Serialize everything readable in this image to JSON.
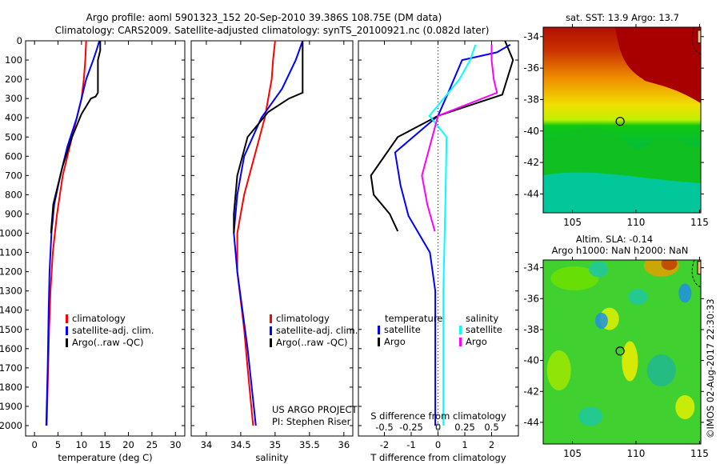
{
  "title_line1": "Argo profile: aoml 5901323_152 20-Sep-2010 39.386S 108.75E (DM data)",
  "title_line2": "Climatology: CARS2009. Satellite-adjusted climatology: synTS_20100921.nc (0.082d later)",
  "credit": "©IMOS 02-Aug-2017 22:30:33",
  "project_line1": "US ARGO PROJECT",
  "project_line2": "PI: Stephen Riser",
  "colors": {
    "climatology": "#ff0000",
    "satellite": "#0000ff",
    "argo": "#000000",
    "sal_satellite": "#00ffff",
    "sal_argo": "#ff00ff"
  },
  "chart_data": [
    {
      "type": "line",
      "name": "temperature-profile",
      "xlabel": "temperature (deg C)",
      "ylabel": "",
      "xlim": [
        -1.9,
        32
      ],
      "ylim": [
        2054,
        0
      ],
      "xticks": [
        "0",
        "5",
        "10",
        "15",
        "20",
        "25",
        "30"
      ],
      "xtick_values": [
        0,
        5,
        10,
        15,
        20,
        25,
        30
      ],
      "yticks": [
        "0",
        "100",
        "200",
        "300",
        "400",
        "500",
        "600",
        "700",
        "800",
        "900",
        "1000",
        "1100",
        "1200",
        "1300",
        "1400",
        "1500",
        "1600",
        "1700",
        "1800",
        "1900",
        "2000"
      ],
      "legend": [
        "climatology",
        "satellite-adj. clim.",
        "Argo(..raw -QC)"
      ],
      "series": [
        {
          "name": "climatology",
          "color": "#ff0000",
          "x": [
            11,
            10.8,
            10.5,
            10,
            9.5,
            8,
            6,
            4.8,
            3.9,
            3.4,
            3.1,
            2.9,
            2.6
          ],
          "y": [
            0,
            100,
            200,
            300,
            350,
            500,
            700,
            900,
            1100,
            1300,
            1500,
            1700,
            2000
          ]
        },
        {
          "name": "satellite-adj. clim.",
          "color": "#0000ff",
          "x": [
            13.8,
            13.2,
            12.5,
            11,
            10,
            9,
            7,
            5.5,
            4.2,
            3.6,
            3.2,
            3,
            2.8,
            2.5
          ],
          "y": [
            0,
            50,
            100,
            200,
            300,
            400,
            550,
            700,
            850,
            1000,
            1200,
            1400,
            1700,
            2000
          ]
        },
        {
          "name": "Argo(..raw -QC)",
          "color": "#000000",
          "x": [
            14,
            14,
            13.5,
            13.5,
            13,
            12,
            10,
            8,
            6,
            4,
            3.5
          ],
          "y": [
            0,
            50,
            100,
            270,
            290,
            300,
            380,
            500,
            650,
            850,
            1000
          ]
        }
      ]
    },
    {
      "type": "line",
      "name": "salinity-profile",
      "xlabel": "salinity",
      "xlim": [
        33.78,
        36.13
      ],
      "ylim": [
        2054,
        0
      ],
      "xticks": [
        "34",
        "34.5",
        "35",
        "35.5",
        "36"
      ],
      "xtick_values": [
        34,
        34.5,
        35,
        35.5,
        36
      ],
      "legend": [
        "climatology",
        "satellite-adj. clim.",
        "Argo(..raw -QC)"
      ],
      "series": [
        {
          "name": "climatology",
          "color": "#ff0000",
          "x": [
            35,
            34.97,
            34.95,
            34.85,
            34.7,
            34.55,
            34.45,
            34.45,
            34.55,
            34.6,
            34.68
          ],
          "y": [
            0,
            100,
            200,
            400,
            600,
            800,
            1000,
            1200,
            1500,
            1700,
            2000
          ]
        },
        {
          "name": "satellite-adj. clim.",
          "color": "#0000ff",
          "x": [
            35.4,
            35.3,
            35.1,
            34.8,
            34.55,
            34.45,
            34.4,
            34.45,
            34.6,
            34.72
          ],
          "y": [
            0,
            100,
            250,
            400,
            600,
            800,
            1000,
            1200,
            1600,
            2000
          ]
        },
        {
          "name": "Argo(..raw -QC)",
          "color": "#000000",
          "x": [
            35.4,
            35.4,
            35.4,
            35.2,
            34.9,
            34.6,
            34.45,
            34.4,
            34.4
          ],
          "y": [
            0,
            50,
            270,
            300,
            370,
            500,
            700,
            900,
            1000
          ]
        }
      ]
    },
    {
      "type": "line",
      "name": "difference-profile",
      "xlabel": "T difference from climatology",
      "x2label": "S difference from climatology",
      "xlim": [
        -2.97,
        3.0
      ],
      "ylim": [
        2054,
        0
      ],
      "xticks": [
        "-2",
        "-1",
        "0",
        "1",
        "2"
      ],
      "xtick_values": [
        -2,
        -1,
        0,
        1,
        2
      ],
      "x2ticks": [
        "-0.5",
        "-0.25",
        "0",
        "0.25",
        "0.5"
      ],
      "x2tick_values": [
        -0.5,
        -0.25,
        0,
        0.25,
        0.5
      ],
      "legend_temperature": {
        "title": "temperature",
        "items": [
          "satellite",
          "Argo"
        ]
      },
      "legend_salinity": {
        "title": "salinity",
        "items": [
          "satellite",
          "Argo"
        ]
      },
      "series": [
        {
          "name": "T satellite",
          "color": "#0000ff",
          "units": "T",
          "x": [
            2.7,
            2.2,
            0.9,
            0.35,
            0,
            -1.6,
            -1.4,
            -1.1,
            -0.3,
            -0.1,
            -0.1
          ],
          "y": [
            20,
            60,
            100,
            280,
            390,
            580,
            750,
            910,
            1100,
            1300,
            2000
          ]
        },
        {
          "name": "T Argo",
          "color": "#000000",
          "units": "T",
          "x": [
            2.5,
            2.8,
            2.4,
            0,
            -1.5,
            -2.5,
            -2.4,
            -1.8,
            -1.5
          ],
          "y": [
            0,
            100,
            280,
            390,
            500,
            700,
            800,
            900,
            990
          ]
        },
        {
          "name": "S satellite",
          "color": "#00ffff",
          "units": "S",
          "x": [
            0.35,
            0.3,
            0.2,
            -0.08,
            0.08,
            0.07,
            0.05,
            0.05
          ],
          "y": [
            20,
            100,
            200,
            390,
            500,
            800,
            1300,
            2000
          ]
        },
        {
          "name": "S Argo",
          "color": "#ff00ff",
          "units": "S",
          "x": [
            0.5,
            0.5,
            0.52,
            0.55,
            0,
            -0.15,
            -0.1,
            -0.03
          ],
          "y": [
            20,
            100,
            200,
            270,
            390,
            700,
            850,
            990
          ]
        }
      ]
    },
    {
      "type": "heatmap",
      "name": "sst-map",
      "title": "sat. SST: 13.9 Argo: 13.7",
      "xlim": [
        102.7,
        115.1
      ],
      "ylim": [
        -45.2,
        -33.4
      ],
      "xticks": [
        "105",
        "110",
        "115"
      ],
      "xtick_values": [
        105,
        110,
        115
      ],
      "yticks": [
        "-34",
        "-36",
        "-38",
        "-40",
        "-42",
        "-44"
      ],
      "ytick_values": [
        -34,
        -36,
        -38,
        -40,
        -42,
        -44
      ],
      "marker": {
        "lon": 108.75,
        "lat": -39.386
      }
    },
    {
      "type": "heatmap",
      "name": "sla-map",
      "title": "Altim. SLA: -0.14",
      "subtitle": "Argo h1000: NaN h2000: NaN",
      "xlim": [
        102.7,
        115.1
      ],
      "ylim": [
        -45.4,
        -33.5
      ],
      "xticks": [
        "105",
        "110",
        "115"
      ],
      "xtick_values": [
        105,
        110,
        115
      ],
      "yticks": [
        "-34",
        "-36",
        "-38",
        "-40",
        "-42",
        "-44"
      ],
      "ytick_values": [
        -34,
        -36,
        -38,
        -40,
        -42,
        -44
      ],
      "marker": {
        "lon": 108.75,
        "lat": -39.386
      }
    }
  ]
}
